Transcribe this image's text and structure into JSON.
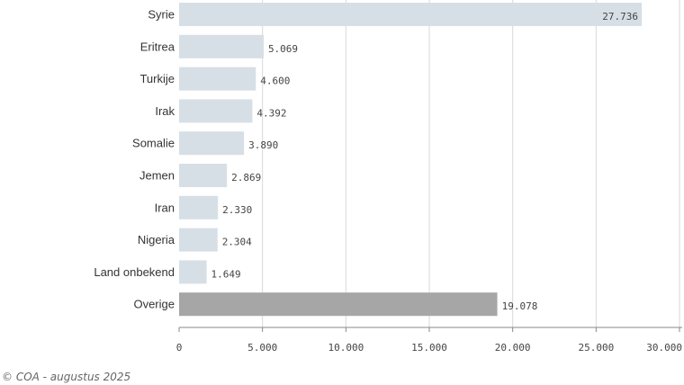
{
  "chart_data": {
    "type": "bar",
    "orientation": "horizontal",
    "categories": [
      "Syrie",
      "Eritrea",
      "Turkije",
      "Irak",
      "Somalie",
      "Jemen",
      "Iran",
      "Nigeria",
      "Land onbekend",
      "Overige"
    ],
    "values": [
      27736,
      5069,
      4600,
      4392,
      3890,
      2869,
      2330,
      2304,
      1649,
      19078
    ],
    "value_labels": [
      "27.736",
      "5.069",
      "4.600",
      "4.392",
      "3.890",
      "2.869",
      "2.330",
      "2.304",
      "1.649",
      "19.078"
    ],
    "xlim": [
      0,
      30000
    ],
    "xticks": [
      0,
      5000,
      10000,
      15000,
      20000,
      25000,
      30000
    ],
    "xtick_labels": [
      "0",
      "5.000",
      "10.000",
      "15.000",
      "20.000",
      "25.000",
      "30.000"
    ],
    "grid": true,
    "colors": {
      "bar": "#d7dfe6",
      "highlight_bar": "#a6a6a6",
      "grid": "#d9d9d9",
      "axis": "#888888"
    },
    "highlight_category": "Overige"
  },
  "source": "© COA - augustus 2025"
}
